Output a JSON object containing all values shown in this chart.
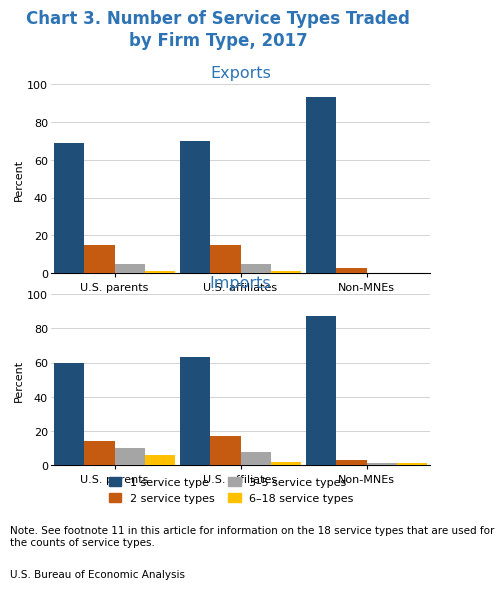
{
  "title": "Chart 3. Number of Service Types Traded\nby Firm Type, 2017",
  "title_color": "#2E74B5",
  "exports_title": "Exports",
  "imports_title": "Imports",
  "categories": [
    "U.S. parents",
    "U.S. affiliates",
    "Non-MNEs"
  ],
  "exports": {
    "1_service_type": [
      69,
      70,
      93
    ],
    "2_service_types": [
      15,
      15,
      3
    ],
    "3_5_service_types": [
      5,
      5,
      0
    ],
    "6_18_service_types": [
      1,
      1,
      0
    ]
  },
  "imports": {
    "1_service_type": [
      60,
      63,
      87
    ],
    "2_service_types": [
      14,
      17,
      3
    ],
    "3_5_service_types": [
      10,
      8,
      1
    ],
    "6_18_service_types": [
      6,
      2,
      1
    ]
  },
  "colors": {
    "1_service_type": "#1F4E79",
    "2_service_types": "#C55A11",
    "3_5_service_types": "#A5A5A5",
    "6_18_service_types": "#FFC000"
  },
  "legend_labels": [
    "1 service type",
    "2 service types",
    "3–5 service types",
    "6–18 service types"
  ],
  "ylabel": "Percent",
  "ylim": [
    0,
    100
  ],
  "yticks": [
    0,
    20,
    40,
    60,
    80,
    100
  ],
  "note": "Note. See footnote 11 in this article for information on the 18 service types that are used for the counts of service types.",
  "source": "U.S. Bureau of Economic Analysis",
  "bar_width": 0.18,
  "subtitle_color": "#2E74B5",
  "axis_title_fontsize": 8,
  "tick_fontsize": 8,
  "note_fontsize": 7.5,
  "title_fontsize": 12
}
